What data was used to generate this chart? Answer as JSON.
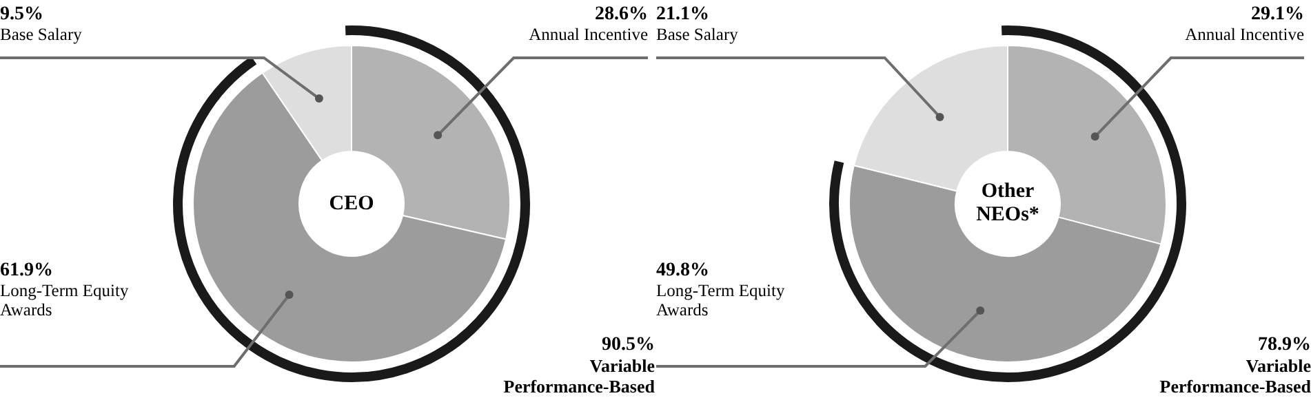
{
  "chart_data": [
    {
      "type": "donut",
      "title": "CEO",
      "categories": [
        "Annual Incentive",
        "Long-Term Equity Awards",
        "Base Salary"
      ],
      "values": [
        28.6,
        61.9,
        9.5
      ],
      "colors": [
        "#b3b3b3",
        "#9c9c9c",
        "#dedede"
      ],
      "value_labels": [
        "28.6%",
        "61.9%",
        "9.5%"
      ],
      "annotations": [
        "90.5%",
        "Variable Performance-Based"
      ],
      "legend": false
    },
    {
      "type": "donut",
      "title": "Other NEOs*",
      "categories": [
        "Annual Incentive",
        "Long-Term Equity Awards",
        "Base Salary"
      ],
      "values": [
        29.1,
        49.8,
        21.1
      ],
      "colors": [
        "#b3b3b3",
        "#9c9c9c",
        "#dedede"
      ],
      "value_labels": [
        "29.1%",
        "49.8%",
        "21.1%"
      ],
      "annotations": [
        "78.9%",
        "Variable Performance-Based"
      ],
      "legend": false
    }
  ]
}
